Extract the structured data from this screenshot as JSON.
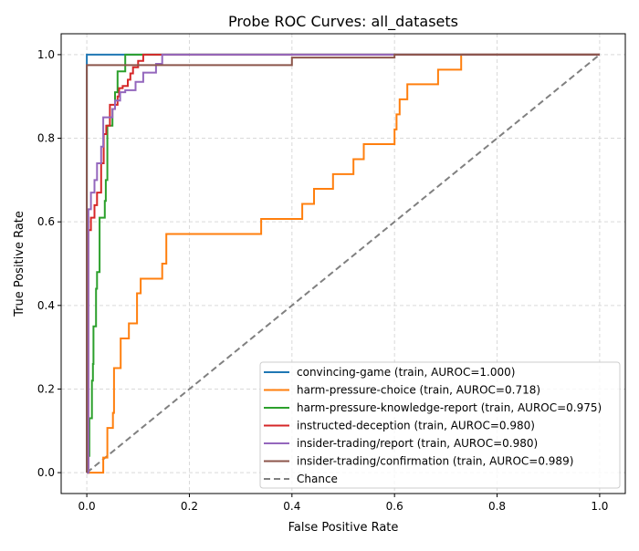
{
  "chart_data": {
    "type": "line",
    "title": "Probe ROC Curves: all_datasets",
    "xlabel": "False Positive Rate",
    "ylabel": "True Positive Rate",
    "xlim": [
      -0.05,
      1.05
    ],
    "ylim": [
      -0.05,
      1.05
    ],
    "xticks": [
      "0.0",
      "0.2",
      "0.4",
      "0.6",
      "0.8",
      "1.0"
    ],
    "yticks": [
      "0.0",
      "0.2",
      "0.4",
      "0.6",
      "0.8",
      "1.0"
    ],
    "grid": true,
    "legend_position": "lower-right",
    "series": [
      {
        "name": "convincing-game (train, AUROC=1.000)",
        "color": "#1f77b4",
        "x": [
          0,
          0,
          1
        ],
        "y": [
          0,
          1,
          1
        ]
      },
      {
        "name": "harm-pressure-choice (train, AUROC=0.718)",
        "color": "#ff7f0e",
        "x": [
          0,
          0.032,
          0.032,
          0.04,
          0.04,
          0.051,
          0.051,
          0.053,
          0.053,
          0.066,
          0.066,
          0.082,
          0.082,
          0.098,
          0.098,
          0.105,
          0.105,
          0.147,
          0.147,
          0.155,
          0.155,
          0.34,
          0.34,
          0.42,
          0.42,
          0.443,
          0.443,
          0.48,
          0.48,
          0.52,
          0.52,
          0.54,
          0.54,
          0.6,
          0.6,
          0.604,
          0.604,
          0.61,
          0.61,
          0.625,
          0.625,
          0.685,
          0.685,
          0.73,
          0.73,
          1
        ],
        "y": [
          0,
          0,
          0.036,
          0.036,
          0.107,
          0.107,
          0.143,
          0.143,
          0.25,
          0.25,
          0.321,
          0.321,
          0.357,
          0.357,
          0.429,
          0.429,
          0.464,
          0.464,
          0.5,
          0.5,
          0.571,
          0.571,
          0.607,
          0.607,
          0.643,
          0.643,
          0.679,
          0.679,
          0.714,
          0.714,
          0.75,
          0.75,
          0.786,
          0.786,
          0.821,
          0.821,
          0.857,
          0.857,
          0.893,
          0.893,
          0.929,
          0.929,
          0.964,
          0.964,
          1,
          1
        ]
      },
      {
        "name": "harm-pressure-knowledge-report (train, AUROC=0.975)",
        "color": "#2ca02c",
        "x": [
          0,
          0.003,
          0.003,
          0.005,
          0.005,
          0.01,
          0.01,
          0.012,
          0.012,
          0.013,
          0.013,
          0.018,
          0.018,
          0.02,
          0.02,
          0.025,
          0.025,
          0.035,
          0.035,
          0.037,
          0.037,
          0.04,
          0.04,
          0.05,
          0.05,
          0.055,
          0.055,
          0.06,
          0.06,
          0.075,
          0.075,
          1
        ],
        "y": [
          0,
          0,
          0.04,
          0.04,
          0.13,
          0.13,
          0.22,
          0.22,
          0.26,
          0.26,
          0.35,
          0.35,
          0.44,
          0.44,
          0.48,
          0.48,
          0.61,
          0.61,
          0.65,
          0.65,
          0.7,
          0.7,
          0.83,
          0.83,
          0.87,
          0.87,
          0.91,
          0.91,
          0.96,
          0.96,
          1,
          1
        ]
      },
      {
        "name": "instructed-deception (train, AUROC=0.980)",
        "color": "#d62728",
        "x": [
          0,
          0.003,
          0.003,
          0.008,
          0.008,
          0.015,
          0.015,
          0.02,
          0.02,
          0.028,
          0.028,
          0.033,
          0.033,
          0.038,
          0.038,
          0.045,
          0.045,
          0.06,
          0.06,
          0.063,
          0.063,
          0.07,
          0.07,
          0.08,
          0.08,
          0.085,
          0.085,
          0.09,
          0.09,
          0.1,
          0.1,
          0.11,
          0.11,
          1
        ],
        "y": [
          0,
          0,
          0.58,
          0.58,
          0.61,
          0.61,
          0.64,
          0.64,
          0.67,
          0.67,
          0.74,
          0.74,
          0.81,
          0.81,
          0.83,
          0.83,
          0.88,
          0.88,
          0.9,
          0.9,
          0.92,
          0.92,
          0.925,
          0.925,
          0.94,
          0.94,
          0.955,
          0.955,
          0.97,
          0.97,
          0.985,
          0.985,
          1,
          1
        ]
      },
      {
        "name": "insider-trading/report (train, AUROC=0.980)",
        "color": "#9467bd",
        "x": [
          0,
          0.003,
          0.003,
          0.008,
          0.008,
          0.015,
          0.015,
          0.02,
          0.02,
          0.028,
          0.028,
          0.032,
          0.032,
          0.05,
          0.05,
          0.055,
          0.055,
          0.065,
          0.065,
          0.075,
          0.075,
          0.095,
          0.095,
          0.11,
          0.11,
          0.135,
          0.135,
          0.147,
          0.147,
          1
        ],
        "y": [
          0,
          0,
          0.63,
          0.63,
          0.67,
          0.67,
          0.7,
          0.7,
          0.74,
          0.74,
          0.78,
          0.78,
          0.85,
          0.85,
          0.87,
          0.87,
          0.89,
          0.89,
          0.91,
          0.91,
          0.915,
          0.915,
          0.935,
          0.935,
          0.957,
          0.957,
          0.978,
          0.978,
          1,
          1
        ]
      },
      {
        "name": "insider-trading/confirmation (train, AUROC=0.989)",
        "color": "#8c564b",
        "x": [
          0,
          0,
          0.4,
          0.4,
          0.6,
          0.6,
          1
        ],
        "y": [
          0,
          0.975,
          0.975,
          0.993,
          0.993,
          1,
          1
        ]
      },
      {
        "name": "Chance",
        "color": "#808080",
        "dashed": true,
        "x": [
          0,
          1
        ],
        "y": [
          0,
          1
        ]
      }
    ]
  }
}
